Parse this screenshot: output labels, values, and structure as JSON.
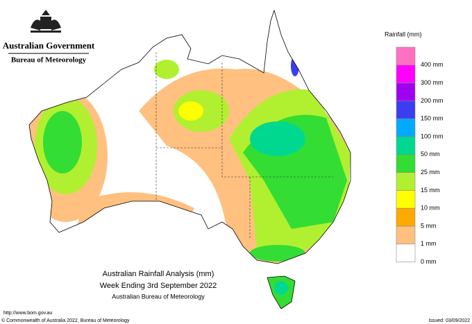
{
  "header": {
    "government": "Australian Government",
    "agency": "Bureau of Meteorology"
  },
  "legend": {
    "title": "Rainfall (mm)",
    "items": [
      {
        "color": "#ff70c0",
        "label": "400 mm"
      },
      {
        "color": "#ff00ff",
        "label": "300 mm"
      },
      {
        "color": "#a000f0",
        "label": "200 mm"
      },
      {
        "color": "#3c3cf0",
        "label": "150 mm"
      },
      {
        "color": "#00aaff",
        "label": "100 mm"
      },
      {
        "color": "#00d890",
        "label": "50 mm"
      },
      {
        "color": "#33dd33",
        "label": "25 mm"
      },
      {
        "color": "#b0f030",
        "label": "15 mm"
      },
      {
        "color": "#ffff00",
        "label": "10 mm"
      },
      {
        "color": "#ffaa00",
        "label": "5 mm"
      },
      {
        "color": "#ffc080",
        "label": "1 mm"
      },
      {
        "color": "#ffffff",
        "label": "0 mm"
      }
    ]
  },
  "caption": {
    "line1": "Australian Rainfall Analysis (mm)",
    "line2": "Week Ending 3rd September 2022",
    "line3": "Australian Bureau of Meteorology"
  },
  "footer": {
    "url": "http://www.bom.gov.au",
    "copyright": "© Commonwealth of Australia 2022, Bureau of Meteorology",
    "issued": "Issued: 03/09/2022"
  }
}
